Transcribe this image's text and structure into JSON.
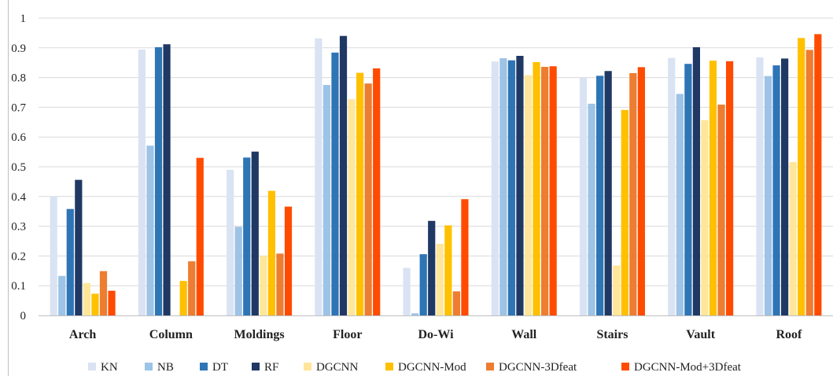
{
  "chart_data": {
    "type": "bar",
    "title": "",
    "xlabel": "",
    "ylabel": "",
    "ylim": [
      0,
      1
    ],
    "yticks": [
      "0",
      "0.1",
      "0.2",
      "0.3",
      "0.4",
      "0.5",
      "0.6",
      "0.7",
      "0.8",
      "0.9",
      "1"
    ],
    "grid": true,
    "legend_position": "bottom",
    "categories": [
      "Arch",
      "Column",
      "Moldings",
      "Floor",
      "Do-Wi",
      "Wall",
      "Stairs",
      "Vault",
      "Roof"
    ],
    "series": [
      {
        "name": "KN",
        "color": "#dae3f3",
        "values": [
          0.4,
          0.894,
          0.49,
          0.932,
          0.16,
          0.854,
          0.8,
          0.866,
          0.868
        ]
      },
      {
        "name": "NB",
        "color": "#9dc3e6",
        "values": [
          0.133,
          0.571,
          0.298,
          0.775,
          0.007,
          0.865,
          0.712,
          0.745,
          0.805
        ]
      },
      {
        "name": "DT",
        "color": "#2e75b6",
        "values": [
          0.358,
          0.902,
          0.531,
          0.884,
          0.206,
          0.858,
          0.806,
          0.846,
          0.841
        ]
      },
      {
        "name": "RF",
        "color": "#203864",
        "values": [
          0.456,
          0.912,
          0.551,
          0.94,
          0.318,
          0.873,
          0.822,
          0.902,
          0.864
        ]
      },
      {
        "name": "DGCNN",
        "color": "#ffe699",
        "values": [
          0.109,
          0.0,
          0.2,
          0.727,
          0.241,
          0.808,
          0.168,
          0.657,
          0.516
        ]
      },
      {
        "name": "DGCNN-Mod",
        "color": "#ffc000",
        "values": [
          0.073,
          0.116,
          0.419,
          0.816,
          0.303,
          0.852,
          0.691,
          0.857,
          0.933
        ]
      },
      {
        "name": "DGCNN-3Dfeat",
        "color": "#ed7d31",
        "values": [
          0.149,
          0.182,
          0.208,
          0.78,
          0.081,
          0.836,
          0.815,
          0.709,
          0.893
        ]
      },
      {
        "name": "DGCNN-Mod+3Dfeat",
        "color": "#ff4b00",
        "values": [
          0.083,
          0.53,
          0.366,
          0.831,
          0.391,
          0.838,
          0.835,
          0.855,
          0.946
        ]
      }
    ]
  }
}
